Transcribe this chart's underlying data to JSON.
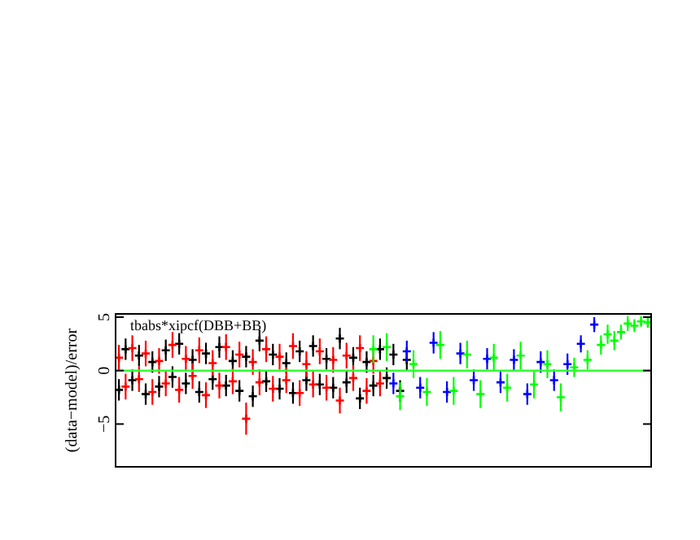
{
  "chart_data": {
    "type": "scatter",
    "title": "tbabs*xipcf(DBB+BB)",
    "ylabel": "(data−model)/error",
    "tick_labels": "y",
    "marker": "cross",
    "ylim": [
      -9,
      5.3
    ],
    "yticks": [
      -5,
      0,
      5
    ],
    "categories": [
      null,
      null,
      null,
      null,
      null,
      null,
      null,
      null,
      null,
      null,
      null,
      null,
      null,
      null,
      null,
      null,
      null,
      null,
      null,
      null,
      null,
      null,
      null,
      null,
      null,
      null,
      null,
      null,
      null,
      null,
      null,
      null,
      null,
      null,
      null,
      null,
      null,
      null,
      null,
      null,
      null,
      null,
      null,
      null,
      null,
      null,
      null,
      null,
      null,
      null,
      null,
      null,
      null,
      null,
      null,
      null,
      null,
      null,
      null,
      null,
      null,
      null,
      null,
      null,
      null,
      null,
      null,
      null,
      null,
      null,
      null,
      null,
      null,
      null,
      null,
      null,
      null,
      null,
      null,
      null
    ],
    "ref_lines": [
      {
        "axis": "y",
        "value": 0,
        "color": "#33ff33"
      }
    ],
    "series": [
      {
        "color": "#000000",
        "values": [
          -1.8,
          2.0,
          -0.9,
          1.4,
          -2.2,
          0.8,
          -1.5,
          1.9,
          -0.6,
          2.5,
          -1.2,
          1.0,
          -2.0,
          1.6,
          -0.8,
          2.2,
          -1.4,
          0.9,
          -1.9,
          1.3,
          -2.4,
          2.8,
          -1.0,
          1.5,
          -1.7,
          0.7,
          -2.1,
          1.8,
          -0.9,
          2.3,
          -1.3,
          1.1,
          -1.6,
          3.0,
          -1.1,
          1.2,
          -2.6,
          0.8,
          -1.4,
          2.0,
          -0.7,
          1.5,
          -1.9,
          1.0,
          null,
          null,
          null,
          null,
          null,
          null,
          null,
          null,
          null,
          null,
          null,
          null,
          null,
          null,
          null,
          null,
          null,
          null,
          null,
          null,
          null,
          null,
          null,
          null,
          null,
          null,
          null,
          null,
          null,
          null,
          null,
          null,
          null,
          null,
          null,
          null
        ],
        "errors": [
          1.0,
          1.0,
          1.0,
          1.0,
          1.0,
          1.0,
          1.0,
          1.0,
          1.0,
          1.0,
          1.0,
          1.0,
          1.0,
          1.0,
          1.0,
          1.0,
          1.0,
          1.0,
          1.0,
          1.0,
          1.0,
          1.0,
          1.0,
          1.0,
          1.0,
          1.0,
          1.0,
          1.0,
          1.0,
          1.0,
          1.0,
          1.0,
          1.0,
          1.0,
          1.0,
          1.0,
          1.0,
          1.0,
          1.0,
          1.0,
          1.0,
          1.0,
          1.0,
          1.0,
          null,
          null,
          null,
          null,
          null,
          null,
          null,
          null,
          null,
          null,
          null,
          null,
          null,
          null,
          null,
          null,
          null,
          null,
          null,
          null,
          null,
          null,
          null,
          null,
          null,
          null,
          null,
          null,
          null,
          null,
          null,
          null,
          null,
          null,
          null,
          null
        ]
      },
      {
        "color": "#ff0000",
        "values": [
          1.2,
          -1.5,
          2.1,
          -0.8,
          1.6,
          -2.0,
          0.9,
          -1.2,
          2.4,
          -1.8,
          1.1,
          -0.5,
          1.9,
          -2.3,
          0.7,
          -1.4,
          2.2,
          -1.0,
          1.5,
          -4.5,
          0.8,
          -1.1,
          2.0,
          -1.7,
          1.3,
          -0.9,
          2.3,
          -2.1,
          0.6,
          -1.3,
          1.8,
          -1.6,
          1.0,
          -2.8,
          1.4,
          -0.7,
          2.1,
          -1.9,
          0.9,
          -1.2,
          null,
          null,
          null,
          null,
          null,
          null,
          null,
          null,
          null,
          null,
          null,
          null,
          null,
          null,
          null,
          null,
          null,
          null,
          null,
          null,
          null,
          null,
          null,
          null,
          null,
          null,
          null,
          null,
          null,
          null,
          null,
          null,
          null,
          null,
          null,
          null,
          null,
          null,
          null,
          null
        ],
        "errors": [
          1.2,
          1.2,
          1.2,
          1.2,
          1.2,
          1.2,
          1.2,
          1.2,
          1.2,
          1.2,
          1.2,
          1.2,
          1.2,
          1.2,
          1.2,
          1.2,
          1.2,
          1.2,
          1.2,
          1.5,
          1.2,
          1.2,
          1.2,
          1.2,
          1.2,
          1.2,
          1.2,
          1.2,
          1.2,
          1.2,
          1.2,
          1.2,
          1.2,
          1.2,
          1.2,
          1.2,
          1.2,
          1.2,
          1.2,
          1.2,
          null,
          null,
          null,
          null,
          null,
          null,
          null,
          null,
          null,
          null,
          null,
          null,
          null,
          null,
          null,
          null,
          null,
          null,
          null,
          null,
          null,
          null,
          null,
          null,
          null,
          null,
          null,
          null,
          null,
          null,
          null,
          null,
          null,
          null,
          null,
          null,
          null,
          null,
          null,
          null
        ]
      },
      {
        "color": "#0000ff",
        "values": [
          null,
          null,
          null,
          null,
          null,
          null,
          null,
          null,
          null,
          null,
          null,
          null,
          null,
          null,
          null,
          null,
          null,
          null,
          null,
          null,
          null,
          null,
          null,
          null,
          null,
          null,
          null,
          null,
          null,
          null,
          null,
          null,
          null,
          null,
          null,
          null,
          null,
          null,
          null,
          null,
          null,
          -1.2,
          null,
          1.8,
          null,
          -1.6,
          null,
          2.6,
          null,
          -2.0,
          null,
          1.6,
          null,
          -0.9,
          null,
          1.1,
          null,
          -1.1,
          null,
          1.0,
          null,
          -2.2,
          null,
          0.8,
          null,
          -0.9,
          null,
          0.6,
          null,
          2.5,
          null,
          4.3,
          null,
          null,
          null,
          null,
          null,
          null,
          null,
          null
        ],
        "errors": [
          null,
          null,
          null,
          null,
          null,
          null,
          null,
          null,
          null,
          null,
          null,
          null,
          null,
          null,
          null,
          null,
          null,
          null,
          null,
          null,
          null,
          null,
          null,
          null,
          null,
          null,
          null,
          null,
          null,
          null,
          null,
          null,
          null,
          null,
          null,
          null,
          null,
          null,
          null,
          null,
          null,
          1.0,
          null,
          1.0,
          null,
          1.0,
          null,
          1.0,
          null,
          1.0,
          null,
          1.0,
          null,
          1.0,
          null,
          1.0,
          null,
          1.0,
          null,
          1.0,
          null,
          1.0,
          null,
          1.0,
          null,
          1.0,
          null,
          1.0,
          null,
          0.8,
          null,
          0.7,
          null,
          null,
          null,
          null,
          null,
          null,
          null,
          null
        ]
      },
      {
        "color": "#00ff00",
        "values": [
          null,
          null,
          null,
          null,
          null,
          null,
          null,
          null,
          null,
          null,
          null,
          null,
          null,
          null,
          null,
          null,
          null,
          null,
          null,
          null,
          null,
          null,
          null,
          null,
          null,
          null,
          null,
          null,
          null,
          null,
          null,
          null,
          null,
          null,
          null,
          null,
          null,
          null,
          2.0,
          null,
          2.2,
          null,
          -2.4,
          null,
          0.6,
          null,
          -2.0,
          null,
          2.4,
          null,
          -1.9,
          null,
          1.5,
          null,
          -2.2,
          null,
          1.2,
          null,
          -1.6,
          null,
          1.4,
          null,
          -1.3,
          null,
          0.6,
          null,
          -2.5,
          null,
          0.3,
          null,
          1.0,
          null,
          2.4,
          3.4,
          2.8,
          3.6,
          4.4,
          4.2,
          4.6,
          4.5
        ],
        "errors": [
          null,
          null,
          null,
          null,
          null,
          null,
          null,
          null,
          null,
          null,
          null,
          null,
          null,
          null,
          null,
          null,
          null,
          null,
          null,
          null,
          null,
          null,
          null,
          null,
          null,
          null,
          null,
          null,
          null,
          null,
          null,
          null,
          null,
          null,
          null,
          null,
          null,
          null,
          1.3,
          null,
          1.3,
          null,
          1.3,
          null,
          1.3,
          null,
          1.3,
          null,
          1.3,
          null,
          1.3,
          null,
          1.3,
          null,
          1.3,
          null,
          1.3,
          null,
          1.3,
          null,
          1.3,
          null,
          1.3,
          null,
          1.3,
          null,
          1.3,
          null,
          0.9,
          null,
          0.9,
          null,
          0.9,
          0.9,
          0.9,
          0.7,
          0.7,
          0.6,
          0.5,
          0.5
        ]
      }
    ]
  }
}
